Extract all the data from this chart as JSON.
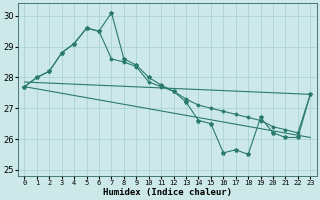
{
  "xlabel": "Humidex (Indice chaleur)",
  "bg_color": "#cce8e8",
  "line_color": "#2a7a6a",
  "grid_color": "#aad4d4",
  "xlim": [
    -0.5,
    23.5
  ],
  "ylim": [
    24.8,
    30.4
  ],
  "yticks": [
    25,
    26,
    27,
    28,
    29,
    30
  ],
  "xticks": [
    0,
    1,
    2,
    3,
    4,
    5,
    6,
    7,
    8,
    9,
    10,
    11,
    12,
    13,
    14,
    15,
    16,
    17,
    18,
    19,
    20,
    21,
    22,
    23
  ],
  "series1_x": [
    0,
    1,
    2,
    3,
    4,
    5,
    6,
    7,
    8,
    9,
    10,
    11,
    12,
    13,
    14,
    15,
    16,
    17,
    18,
    19,
    20,
    21,
    22,
    23
  ],
  "series1_y": [
    27.7,
    28.0,
    28.2,
    28.8,
    29.1,
    29.6,
    29.5,
    30.1,
    28.6,
    28.4,
    28.0,
    27.75,
    27.55,
    27.2,
    26.6,
    26.5,
    25.55,
    25.65,
    25.5,
    26.7,
    26.2,
    26.05,
    26.05,
    27.45
  ],
  "series2_x": [
    0,
    1,
    2,
    3,
    4,
    5,
    6,
    7,
    8,
    9,
    10,
    11,
    12,
    13,
    14,
    15,
    16,
    17,
    18,
    19,
    20,
    21,
    22,
    23
  ],
  "series2_y": [
    27.7,
    28.0,
    28.2,
    28.8,
    29.1,
    29.6,
    29.5,
    28.6,
    28.5,
    28.35,
    27.85,
    27.7,
    27.55,
    27.3,
    27.1,
    27.0,
    26.9,
    26.8,
    26.7,
    26.6,
    26.4,
    26.3,
    26.2,
    27.45
  ],
  "series3_x": [
    0,
    23
  ],
  "series3_y": [
    27.85,
    27.45
  ],
  "series4_x": [
    0,
    23
  ],
  "series4_y": [
    27.7,
    26.05
  ]
}
